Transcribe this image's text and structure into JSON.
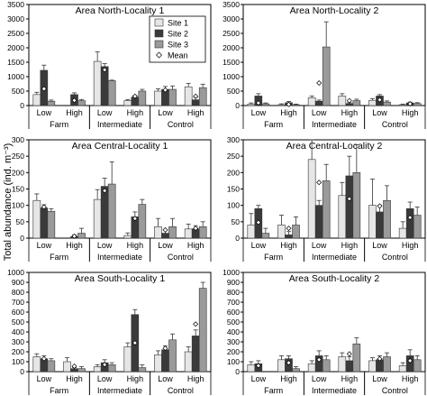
{
  "figure": {
    "ylabel": "Total abundance (ind. m⁻³)",
    "legend": [
      {
        "label": "Site 1",
        "type": "bar",
        "color": "#e6e6e6"
      },
      {
        "label": "Site 2",
        "type": "bar",
        "color": "#3a3a3a"
      },
      {
        "label": "Site 3",
        "type": "bar",
        "color": "#9a9a9a"
      },
      {
        "label": "Mean",
        "type": "marker",
        "color": "#ffffff"
      }
    ],
    "level_labels": [
      "Low",
      "High"
    ],
    "group_labels": [
      "Farm",
      "Intermediate",
      "Control"
    ]
  },
  "chart_data": [
    {
      "type": "bar",
      "title": "Area North-Locality 1",
      "ylim": [
        0,
        3500
      ],
      "yticks": [
        0,
        500,
        1000,
        1500,
        2000,
        2500,
        3000,
        3500
      ],
      "show_ytick_labels": true,
      "categories": [
        "Farm Low",
        "Farm High",
        "Intermediate Low",
        "Intermediate High",
        "Control Low",
        "Control High"
      ],
      "series": [
        {
          "name": "Site 1",
          "values": [
            380,
            0,
            1530,
            170,
            500,
            650
          ],
          "errors": [
            80,
            0,
            330,
            40,
            80,
            120
          ]
        },
        {
          "name": "Site 2",
          "values": [
            1220,
            380,
            1350,
            290,
            560,
            200
          ],
          "errors": [
            180,
            60,
            100,
            60,
            100,
            80
          ]
        },
        {
          "name": "Site 3",
          "values": [
            150,
            170,
            860,
            500,
            560,
            620
          ],
          "errors": [
            40,
            40,
            20,
            60,
            120,
            120
          ]
        }
      ],
      "mean": [
        580,
        180,
        1240,
        320,
        540,
        320
      ]
    },
    {
      "type": "bar",
      "title": "Area North-Locality 2",
      "ylim": [
        0,
        3500
      ],
      "yticks": [
        0,
        500,
        1000,
        1500,
        2000,
        2500,
        3000,
        3500
      ],
      "show_ytick_labels": false,
      "categories": [
        "Farm Low",
        "Farm High",
        "Intermediate Low",
        "Intermediate High",
        "Control Low",
        "Control High"
      ],
      "series": [
        {
          "name": "Site 1",
          "values": [
            50,
            30,
            270,
            330,
            180,
            30
          ],
          "errors": [
            40,
            30,
            60,
            80,
            60,
            20
          ]
        },
        {
          "name": "Site 2",
          "values": [
            330,
            100,
            150,
            70,
            330,
            90
          ],
          "errors": [
            80,
            40,
            40,
            30,
            50,
            30
          ]
        },
        {
          "name": "Site 3",
          "values": [
            60,
            30,
            2030,
            170,
            120,
            70
          ],
          "errors": [
            30,
            20,
            870,
            50,
            40,
            30
          ]
        }
      ],
      "mean": [
        90,
        40,
        780,
        170,
        200,
        60
      ]
    },
    {
      "type": "bar",
      "title": "Area Central-Locality 1",
      "ylim": [
        0,
        300
      ],
      "yticks": [
        0,
        50,
        100,
        150,
        200,
        250,
        300
      ],
      "show_ytick_labels": true,
      "categories": [
        "Farm Low",
        "Farm High",
        "Intermediate Low",
        "Intermediate High",
        "Control Low",
        "Control High"
      ],
      "series": [
        {
          "name": "Site 1",
          "values": [
            115,
            0,
            118,
            8,
            35,
            28
          ],
          "errors": [
            20,
            0,
            30,
            8,
            25,
            15
          ]
        },
        {
          "name": "Site 2",
          "values": [
            92,
            5,
            158,
            65,
            15,
            28
          ],
          "errors": [
            10,
            5,
            25,
            15,
            10,
            10
          ]
        },
        {
          "name": "Site 3",
          "values": [
            82,
            15,
            165,
            103,
            35,
            35
          ],
          "errors": [
            8,
            15,
            68,
            15,
            25,
            15
          ]
        }
      ],
      "mean": [
        95,
        6,
        145,
        60,
        25,
        30
      ]
    },
    {
      "type": "bar",
      "title": "Area Central-Locality 2",
      "ylim": [
        0,
        300
      ],
      "yticks": [
        0,
        50,
        100,
        150,
        200,
        250,
        300
      ],
      "show_ytick_labels": false,
      "categories": [
        "Farm Low",
        "Farm High",
        "Intermediate Low",
        "Intermediate High",
        "Control Low",
        "Control High"
      ],
      "series": [
        {
          "name": "Site 1",
          "values": [
            40,
            40,
            240,
            130,
            100,
            30
          ],
          "errors": [
            35,
            30,
            70,
            40,
            80,
            20
          ]
        },
        {
          "name": "Site 2",
          "values": [
            90,
            10,
            100,
            190,
            80,
            90
          ],
          "errors": [
            10,
            10,
            15,
            60,
            20,
            20
          ]
        },
        {
          "name": "Site 3",
          "values": [
            15,
            40,
            175,
            200,
            115,
            70
          ],
          "errors": [
            15,
            25,
            50,
            85,
            45,
            25
          ]
        }
      ],
      "mean": [
        48,
        30,
        170,
        120,
        98,
        63
      ]
    },
    {
      "type": "bar",
      "title": "Area South-Locality 1",
      "ylim": [
        0,
        1000
      ],
      "yticks": [
        0,
        100,
        200,
        300,
        400,
        500,
        600,
        700,
        800,
        900,
        1000
      ],
      "show_ytick_labels": true,
      "categories": [
        "Farm Low",
        "Farm High",
        "Intermediate Low",
        "Intermediate High",
        "Control Low",
        "Control High"
      ],
      "series": [
        {
          "name": "Site 1",
          "values": [
            150,
            100,
            50,
            250,
            170,
            200
          ],
          "errors": [
            30,
            40,
            20,
            40,
            40,
            50
          ]
        },
        {
          "name": "Site 2",
          "values": [
            130,
            30,
            90,
            575,
            220,
            360
          ],
          "errors": [
            30,
            10,
            30,
            50,
            40,
            60
          ]
        },
        {
          "name": "Site 3",
          "values": [
            110,
            30,
            70,
            40,
            320,
            840
          ],
          "errors": [
            20,
            20,
            20,
            30,
            60,
            60
          ]
        }
      ],
      "mean": [
        130,
        55,
        70,
        290,
        235,
        480
      ]
    },
    {
      "type": "bar",
      "title": "Area South-Locality 2",
      "ylim": [
        0,
        1000
      ],
      "yticks": [
        0,
        100,
        200,
        300,
        400,
        500,
        600,
        700,
        800,
        900,
        1000
      ],
      "show_ytick_labels": false,
      "categories": [
        "Farm Low",
        "Farm High",
        "Intermediate Low",
        "Intermediate High",
        "Control Low",
        "Control High"
      ],
      "series": [
        {
          "name": "Site 1",
          "values": [
            70,
            120,
            80,
            150,
            110,
            60
          ],
          "errors": [
            30,
            40,
            30,
            40,
            30,
            30
          ]
        },
        {
          "name": "Site 2",
          "values": [
            80,
            130,
            160,
            110,
            120,
            160
          ],
          "errors": [
            30,
            30,
            50,
            40,
            40,
            60
          ]
        },
        {
          "name": "Site 3",
          "values": [
            0,
            30,
            120,
            280,
            150,
            120
          ],
          "errors": [
            0,
            20,
            40,
            60,
            40,
            40
          ]
        }
      ],
      "mean": [
        60,
        90,
        120,
        180,
        130,
        110
      ]
    }
  ]
}
